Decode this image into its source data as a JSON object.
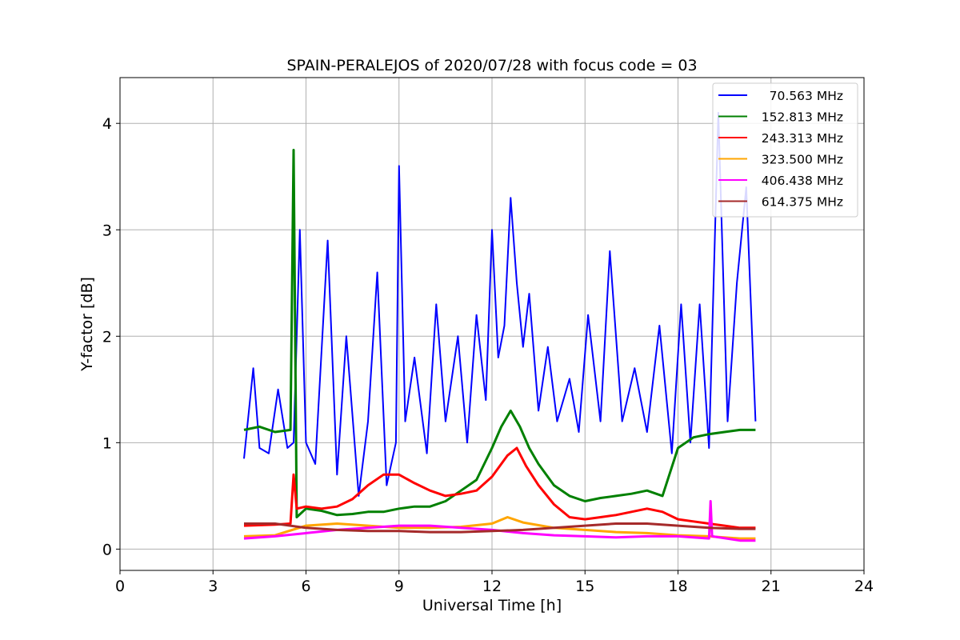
{
  "chart_data": {
    "type": "line",
    "title": "SPAIN-PERALEJOS of 2020/07/28 with focus code = 03",
    "xlabel": "Universal Time [h]",
    "ylabel": "Y-factor [dB]",
    "xlim": [
      0,
      24
    ],
    "ylim": [
      -0.2,
      4.43
    ],
    "xticks": [
      "0",
      "3",
      "6",
      "9",
      "12",
      "15",
      "18",
      "21",
      "24"
    ],
    "yticks": [
      "0",
      "1",
      "2",
      "3",
      "4"
    ],
    "grid": true,
    "legend_position": "top-right",
    "series": [
      {
        "name": "70.563 MHz",
        "color": "#0000ff",
        "x": [
          4.0,
          4.3,
          4.5,
          4.8,
          5.1,
          5.4,
          5.6,
          5.8,
          6.0,
          6.3,
          6.7,
          7.0,
          7.3,
          7.7,
          8.0,
          8.3,
          8.6,
          8.9,
          9.0,
          9.2,
          9.5,
          9.9,
          10.2,
          10.5,
          10.9,
          11.2,
          11.5,
          11.8,
          12.0,
          12.2,
          12.4,
          12.6,
          12.8,
          13.0,
          13.2,
          13.5,
          13.8,
          14.1,
          14.5,
          14.8,
          15.1,
          15.5,
          15.8,
          16.2,
          16.6,
          17.0,
          17.4,
          17.8,
          18.1,
          18.4,
          18.7,
          19.0,
          19.3,
          19.6,
          19.9,
          20.2,
          20.5
        ],
        "y": [
          0.85,
          1.7,
          0.95,
          0.9,
          1.5,
          0.95,
          1.0,
          3.0,
          1.0,
          0.8,
          2.9,
          0.7,
          2.0,
          0.5,
          1.2,
          2.6,
          0.6,
          1.0,
          3.6,
          1.2,
          1.8,
          0.9,
          2.3,
          1.2,
          2.0,
          1.0,
          2.2,
          1.4,
          3.0,
          1.8,
          2.1,
          3.3,
          2.5,
          1.9,
          2.4,
          1.3,
          1.9,
          1.2,
          1.6,
          1.1,
          2.2,
          1.2,
          2.8,
          1.2,
          1.7,
          1.1,
          2.1,
          0.9,
          2.3,
          1.0,
          2.3,
          0.95,
          4.1,
          1.2,
          2.5,
          3.4,
          1.2
        ]
      },
      {
        "name": "152.813 MHz",
        "color": "#008000",
        "x": [
          4.0,
          4.5,
          5.0,
          5.5,
          5.6,
          5.7,
          6.0,
          6.5,
          7.0,
          7.5,
          8.0,
          8.5,
          9.0,
          9.5,
          10.0,
          10.5,
          11.0,
          11.5,
          12.0,
          12.3,
          12.6,
          12.9,
          13.2,
          13.5,
          14.0,
          14.5,
          15.0,
          15.5,
          16.0,
          16.5,
          17.0,
          17.5,
          18.0,
          18.5,
          19.0,
          19.5,
          20.0,
          20.5
        ],
        "y": [
          1.12,
          1.15,
          1.1,
          1.12,
          3.75,
          0.3,
          0.38,
          0.36,
          0.32,
          0.33,
          0.35,
          0.35,
          0.38,
          0.4,
          0.4,
          0.45,
          0.55,
          0.65,
          0.95,
          1.15,
          1.3,
          1.15,
          0.95,
          0.8,
          0.6,
          0.5,
          0.45,
          0.48,
          0.5,
          0.52,
          0.55,
          0.5,
          0.95,
          1.05,
          1.08,
          1.1,
          1.12,
          1.12
        ]
      },
      {
        "name": "243.313 MHz",
        "color": "#ff0000",
        "x": [
          4.0,
          5.0,
          5.5,
          5.6,
          5.7,
          6.0,
          6.5,
          7.0,
          7.5,
          8.0,
          8.5,
          9.0,
          9.5,
          10.0,
          10.5,
          11.0,
          11.5,
          12.0,
          12.5,
          12.8,
          13.1,
          13.5,
          14.0,
          14.5,
          15.0,
          15.5,
          16.0,
          16.5,
          17.0,
          17.5,
          18.0,
          18.5,
          19.0,
          19.5,
          20.0,
          20.5
        ],
        "y": [
          0.22,
          0.23,
          0.24,
          0.7,
          0.38,
          0.4,
          0.38,
          0.4,
          0.47,
          0.6,
          0.7,
          0.7,
          0.62,
          0.55,
          0.5,
          0.52,
          0.55,
          0.68,
          0.88,
          0.95,
          0.78,
          0.6,
          0.42,
          0.3,
          0.28,
          0.3,
          0.32,
          0.35,
          0.38,
          0.35,
          0.28,
          0.26,
          0.24,
          0.22,
          0.2,
          0.2
        ]
      },
      {
        "name": "323.500 MHz",
        "color": "#ffa500",
        "x": [
          4.0,
          5.0,
          6.0,
          7.0,
          8.0,
          9.0,
          10.0,
          11.0,
          12.0,
          12.5,
          13.0,
          14.0,
          15.0,
          16.0,
          17.0,
          18.0,
          19.0,
          20.0,
          20.5
        ],
        "y": [
          0.12,
          0.13,
          0.22,
          0.24,
          0.22,
          0.2,
          0.2,
          0.21,
          0.24,
          0.3,
          0.25,
          0.2,
          0.18,
          0.16,
          0.15,
          0.13,
          0.12,
          0.1,
          0.1
        ]
      },
      {
        "name": "406.438 MHz",
        "color": "#ff00ff",
        "x": [
          4.0,
          5.0,
          6.0,
          7.0,
          8.0,
          9.0,
          10.0,
          11.0,
          12.0,
          13.0,
          14.0,
          15.0,
          16.0,
          17.0,
          18.0,
          19.0,
          19.05,
          19.1,
          20.0,
          20.5
        ],
        "y": [
          0.1,
          0.12,
          0.15,
          0.18,
          0.2,
          0.22,
          0.22,
          0.2,
          0.18,
          0.15,
          0.13,
          0.12,
          0.11,
          0.12,
          0.12,
          0.1,
          0.45,
          0.12,
          0.08,
          0.08
        ]
      },
      {
        "name": "614.375 MHz",
        "color": "#a52a2a",
        "x": [
          4.0,
          5.0,
          6.0,
          7.0,
          8.0,
          9.0,
          10.0,
          11.0,
          12.0,
          13.0,
          14.0,
          15.0,
          16.0,
          17.0,
          18.0,
          19.0,
          20.0,
          20.5
        ],
        "y": [
          0.24,
          0.24,
          0.2,
          0.18,
          0.17,
          0.17,
          0.16,
          0.16,
          0.17,
          0.18,
          0.2,
          0.22,
          0.24,
          0.24,
          0.22,
          0.2,
          0.19,
          0.19
        ]
      }
    ]
  }
}
